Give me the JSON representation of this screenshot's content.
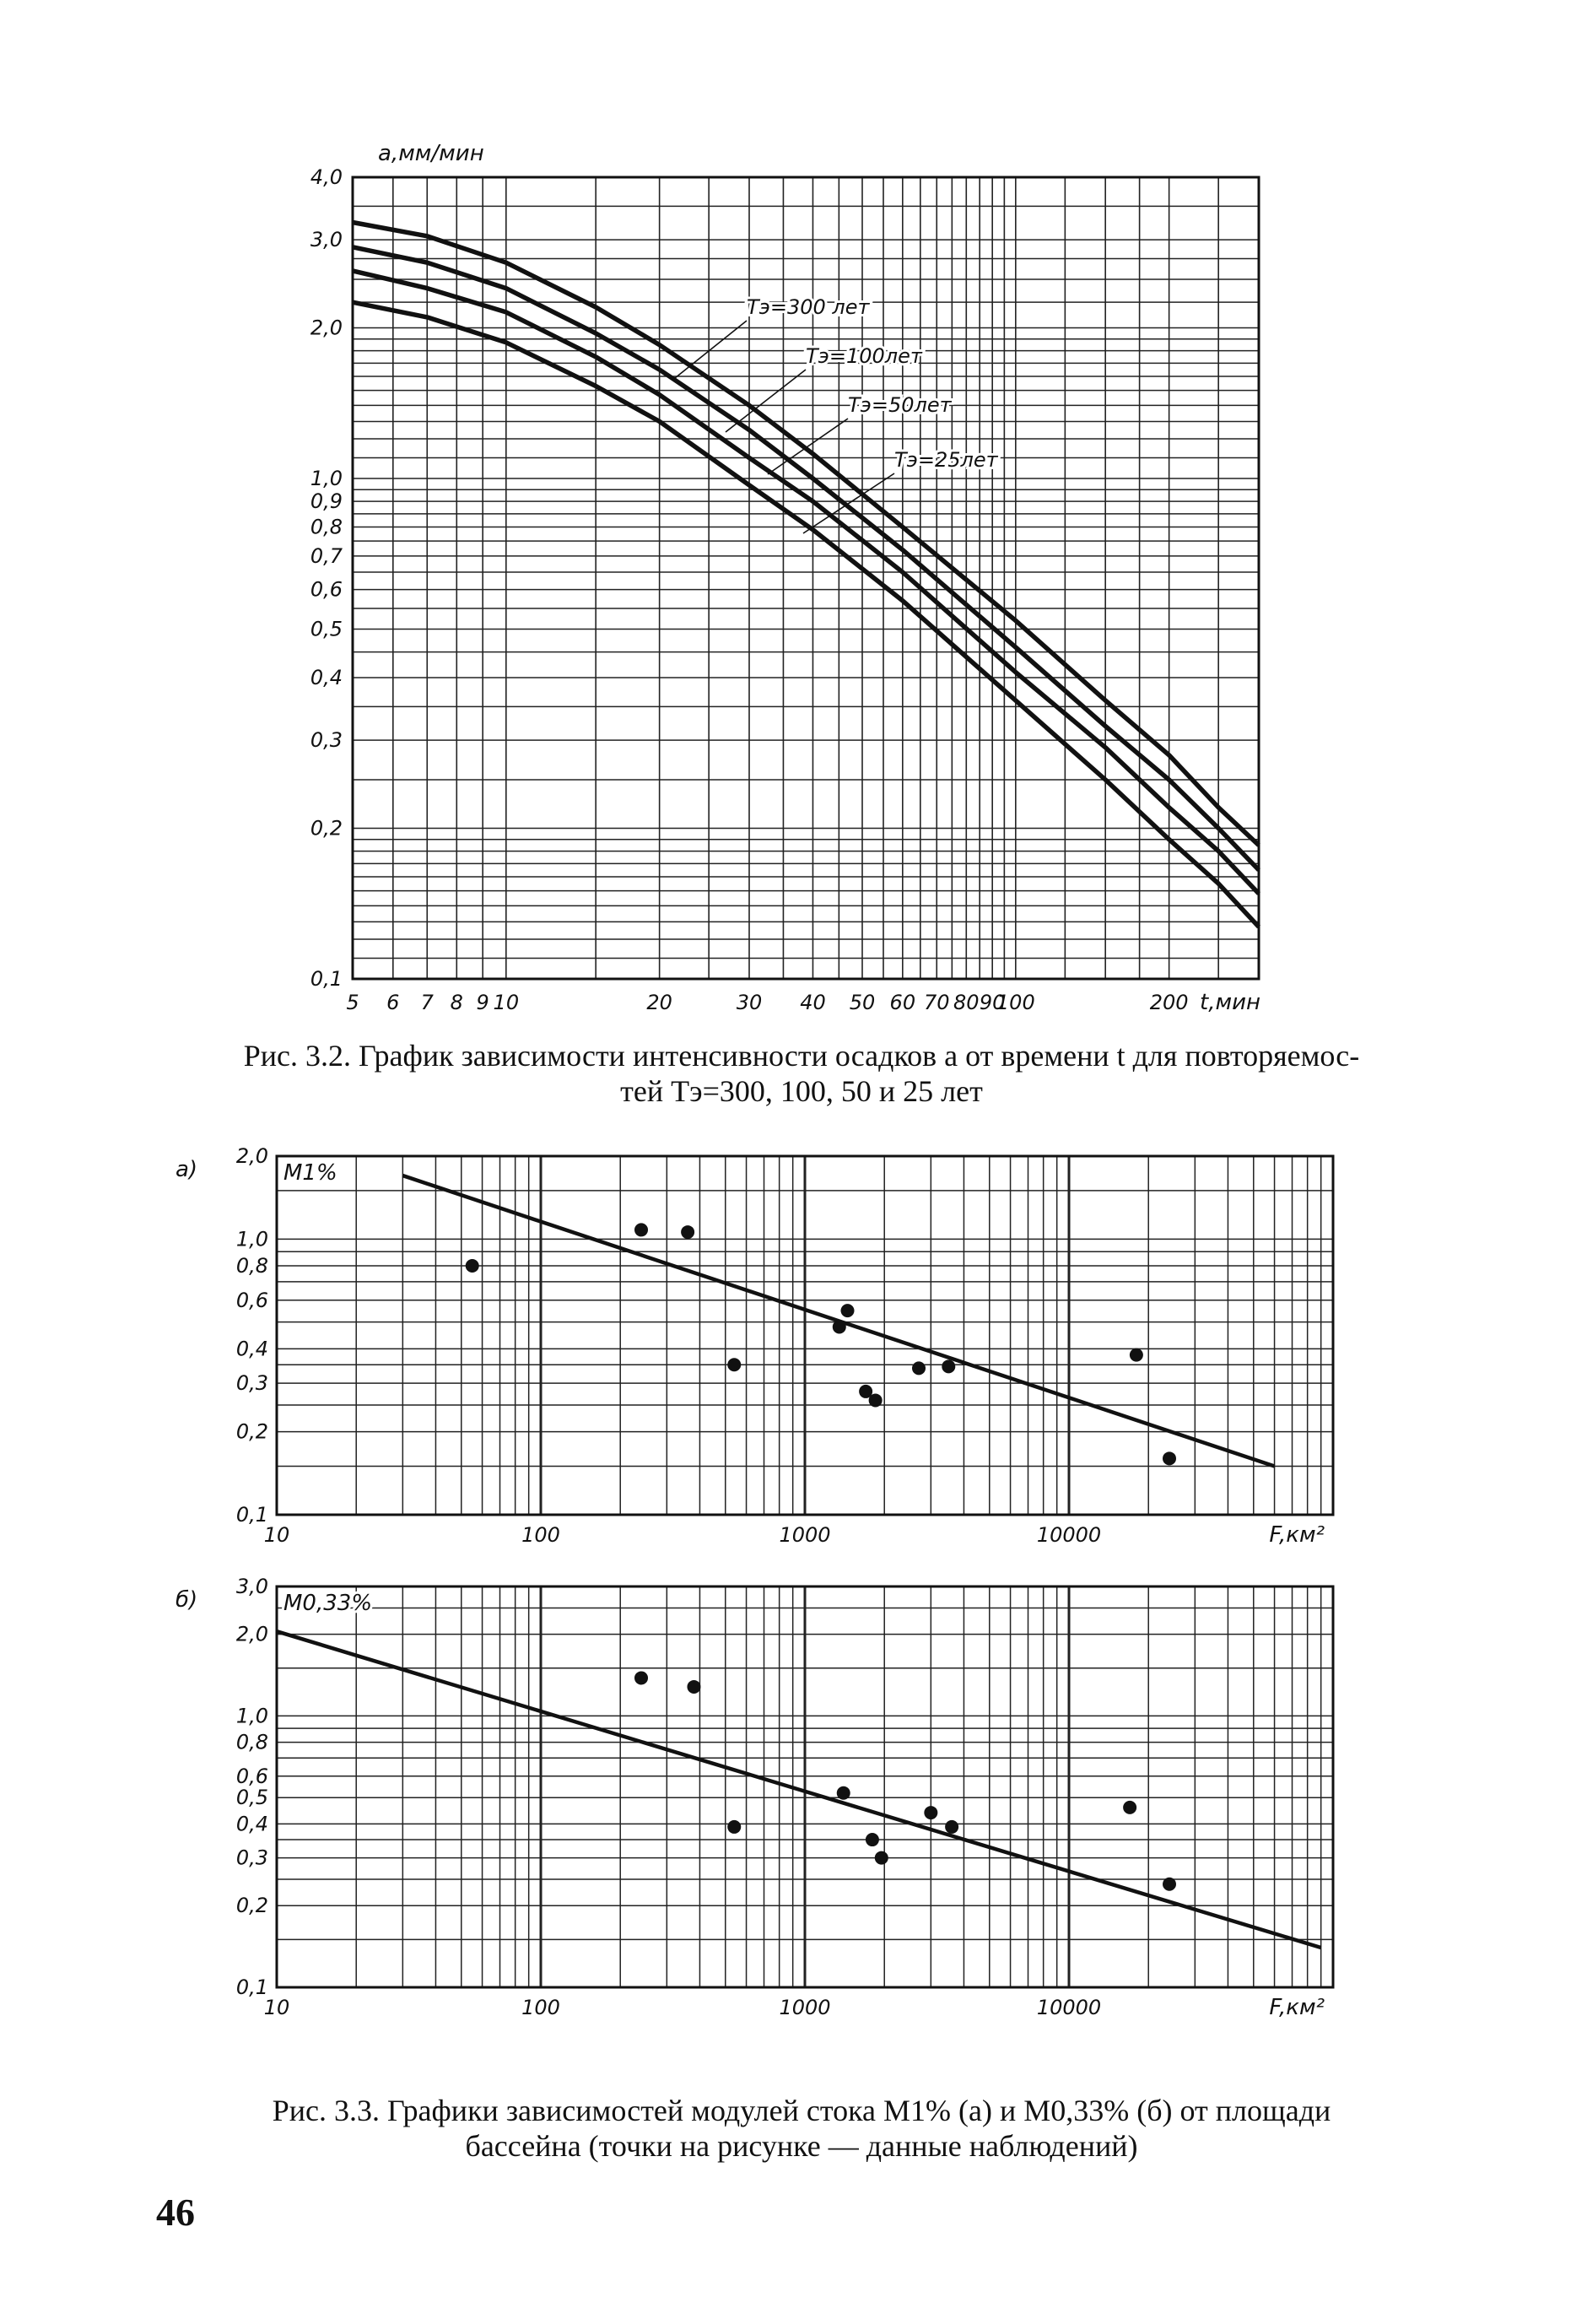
{
  "page_number": "46",
  "caption_fig32_line1": "Рис. 3.2. График зависимости интенсивности осадков a от времени t для повторяемос-",
  "caption_fig32_line2": "тей Tэ=300, 100, 50 и 25 лет",
  "caption_fig33_line1": "Рис. 3.3. Графики зависимостей модулей стока M1% (a) и M0,33% (б) от площади",
  "caption_fig33_line2": "бассейна (точки на рисунке — данные наблюдений)",
  "chart_data": [
    {
      "type": "line",
      "figure": "3.2",
      "ylabel": "a,мм/мин",
      "xlabel": "t,мин",
      "x_scale": "log",
      "y_scale": "log",
      "xlim": [
        5,
        300
      ],
      "ylim": [
        0.1,
        4.0
      ],
      "grid": true,
      "x_tick_labels": [
        "5",
        "6",
        "7",
        "8",
        "9",
        "10",
        "20",
        "30",
        "40",
        "50",
        "60",
        "70",
        "80",
        "90",
        "100",
        "200"
      ],
      "y_tick_labels": [
        "4,0",
        "3,0",
        "2,0",
        "1,0",
        "0,9",
        "0,8",
        "0,7",
        "0,6",
        "0,5",
        "0,4",
        "0,3",
        "0,2",
        "0,1"
      ],
      "curve_labels": [
        "Tэ=300 лет",
        "Tэ=100лет",
        "Tэ=50лет",
        "Tэ=25лет"
      ],
      "series": [
        {
          "name": "Tэ=300 лет",
          "x": [
            5,
            7,
            10,
            15,
            20,
            30,
            40,
            60,
            100,
            150,
            200,
            250,
            300
          ],
          "y": [
            3.25,
            3.05,
            2.7,
            2.2,
            1.85,
            1.4,
            1.12,
            0.8,
            0.52,
            0.36,
            0.28,
            0.22,
            0.185
          ]
        },
        {
          "name": "Tэ=100лет",
          "x": [
            5,
            7,
            10,
            15,
            20,
            30,
            40,
            60,
            100,
            150,
            200,
            250,
            300
          ],
          "y": [
            2.9,
            2.7,
            2.4,
            1.95,
            1.65,
            1.25,
            1.0,
            0.72,
            0.46,
            0.32,
            0.25,
            0.2,
            0.165
          ]
        },
        {
          "name": "Tэ=50лет",
          "x": [
            5,
            7,
            10,
            15,
            20,
            30,
            40,
            60,
            100,
            150,
            200,
            250,
            300
          ],
          "y": [
            2.6,
            2.4,
            2.15,
            1.75,
            1.47,
            1.1,
            0.9,
            0.65,
            0.41,
            0.29,
            0.22,
            0.18,
            0.148
          ]
        },
        {
          "name": "Tэ=25лет",
          "x": [
            5,
            7,
            10,
            15,
            20,
            30,
            40,
            60,
            100,
            150,
            200,
            250,
            300
          ],
          "y": [
            2.25,
            2.1,
            1.87,
            1.53,
            1.3,
            0.97,
            0.79,
            0.57,
            0.36,
            0.25,
            0.19,
            0.155,
            0.127
          ]
        }
      ]
    },
    {
      "type": "scatter",
      "figure": "3.3a",
      "panel_label": "а)",
      "ylabel": "M1%",
      "xlabel": "F,км²",
      "x_scale": "log",
      "y_scale": "log",
      "xlim": [
        10,
        100000
      ],
      "ylim": [
        0.1,
        2.0
      ],
      "grid": true,
      "x_tick_labels": [
        "10",
        "100",
        "1000",
        "10000"
      ],
      "y_tick_labels": [
        "2,0",
        "1,0",
        "0,8",
        "0,6",
        "0,4",
        "0,3",
        "0,2",
        "0,1"
      ],
      "points": {
        "x": [
          55,
          240,
          360,
          540,
          1350,
          1450,
          1700,
          1850,
          2700,
          3500,
          18000,
          24000
        ],
        "y": [
          0.8,
          1.08,
          1.06,
          0.35,
          0.48,
          0.55,
          0.28,
          0.26,
          0.34,
          0.345,
          0.38,
          0.16
        ]
      },
      "trend_line": {
        "x": [
          30,
          60000
        ],
        "y": [
          1.7,
          0.15
        ]
      }
    },
    {
      "type": "scatter",
      "figure": "3.3б",
      "panel_label": "б)",
      "ylabel": "M0,33%",
      "xlabel": "F,км²",
      "x_scale": "log",
      "y_scale": "log",
      "xlim": [
        10,
        100000
      ],
      "ylim": [
        0.1,
        3.0
      ],
      "grid": true,
      "x_tick_labels": [
        "10",
        "100",
        "1000",
        "10000"
      ],
      "y_tick_labels": [
        "3,0",
        "2,0",
        "1,0",
        "0,8",
        "0,6",
        "0,5",
        "0,4",
        "0,3",
        "0,2",
        "0,1"
      ],
      "points": {
        "x": [
          240,
          380,
          540,
          1400,
          1800,
          1950,
          3000,
          3600,
          17000,
          24000
        ],
        "y": [
          1.38,
          1.28,
          0.39,
          0.52,
          0.35,
          0.3,
          0.44,
          0.39,
          0.46,
          0.24
        ]
      },
      "trend_line": {
        "x": [
          10,
          90000
        ],
        "y": [
          2.05,
          0.14
        ]
      }
    }
  ]
}
